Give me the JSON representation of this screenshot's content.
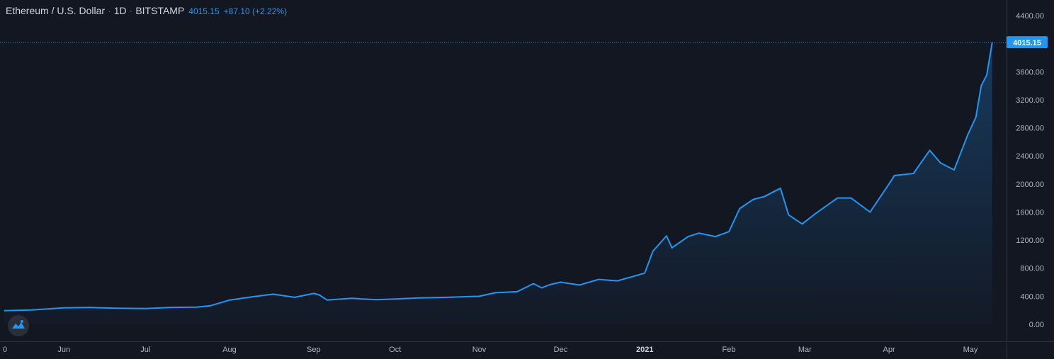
{
  "legend": {
    "symbol": "Ethereum / U.S. Dollar",
    "interval": "1D",
    "exchange": "BITSTAMP",
    "last": "4015.15",
    "change": "+87.10 (+2.22%)"
  },
  "price_label": "4015.15",
  "colors": {
    "background": "#131722",
    "line": "#2196f3",
    "axis_text": "#b2b5be",
    "price_tag": "#2196f3"
  },
  "logo_icon": "tradingview-logo-icon",
  "chart_data": {
    "type": "area",
    "title": "Ethereum / U.S. Dollar",
    "xlabel": "",
    "ylabel": "",
    "ylim": [
      -100,
      4500
    ],
    "yticks": [
      "0.00",
      "400.00",
      "800.00",
      "1200.00",
      "1600.00",
      "2000.00",
      "2400.00",
      "2800.00",
      "3200.00",
      "3600.00",
      "4000.00",
      "4400.00"
    ],
    "x_ticks": [
      "0",
      "Jun",
      "Jul",
      "Aug",
      "Sep",
      "Oct",
      "Nov",
      "Dec",
      "2021",
      "Feb",
      "Mar",
      "Apr",
      "May"
    ],
    "x_tick_dates": [
      "2020-05-10",
      "2020-06-01",
      "2020-07-01",
      "2020-08-01",
      "2020-09-01",
      "2020-10-01",
      "2020-11-01",
      "2020-12-01",
      "2021-01-01",
      "2021-02-01",
      "2021-03-01",
      "2021-04-01",
      "2021-05-01"
    ],
    "grid": false,
    "x": [
      "2020-05-10",
      "2020-05-20",
      "2020-06-01",
      "2020-06-10",
      "2020-06-20",
      "2020-07-01",
      "2020-07-10",
      "2020-07-20",
      "2020-07-25",
      "2020-08-01",
      "2020-08-10",
      "2020-08-17",
      "2020-08-25",
      "2020-09-01",
      "2020-09-03",
      "2020-09-06",
      "2020-09-15",
      "2020-09-24",
      "2020-10-01",
      "2020-10-10",
      "2020-10-20",
      "2020-11-01",
      "2020-11-07",
      "2020-11-15",
      "2020-11-21",
      "2020-11-24",
      "2020-11-27",
      "2020-12-01",
      "2020-12-08",
      "2020-12-15",
      "2020-12-22",
      "2021-01-01",
      "2021-01-04",
      "2021-01-09",
      "2021-01-11",
      "2021-01-17",
      "2021-01-21",
      "2021-01-27",
      "2021-02-01",
      "2021-02-05",
      "2021-02-10",
      "2021-02-14",
      "2021-02-20",
      "2021-02-23",
      "2021-02-28",
      "2021-03-05",
      "2021-03-13",
      "2021-03-18",
      "2021-03-25",
      "2021-04-01",
      "2021-04-03",
      "2021-04-10",
      "2021-04-16",
      "2021-04-20",
      "2021-04-25",
      "2021-04-30",
      "2021-05-03",
      "2021-05-05",
      "2021-05-07",
      "2021-05-09"
    ],
    "series": [
      {
        "values": [
          195,
          205,
          235,
          240,
          230,
          225,
          240,
          245,
          265,
          345,
          395,
          430,
          385,
          440,
          420,
          345,
          370,
          350,
          360,
          375,
          385,
          400,
          450,
          465,
          580,
          520,
          565,
          600,
          560,
          640,
          620,
          730,
          1040,
          1260,
          1090,
          1250,
          1300,
          1250,
          1320,
          1650,
          1780,
          1820,
          1940,
          1560,
          1430,
          1580,
          1800,
          1800,
          1600,
          2000,
          2120,
          2150,
          2480,
          2300,
          2200,
          2700,
          2950,
          3400,
          3550,
          4015
        ]
      }
    ]
  }
}
